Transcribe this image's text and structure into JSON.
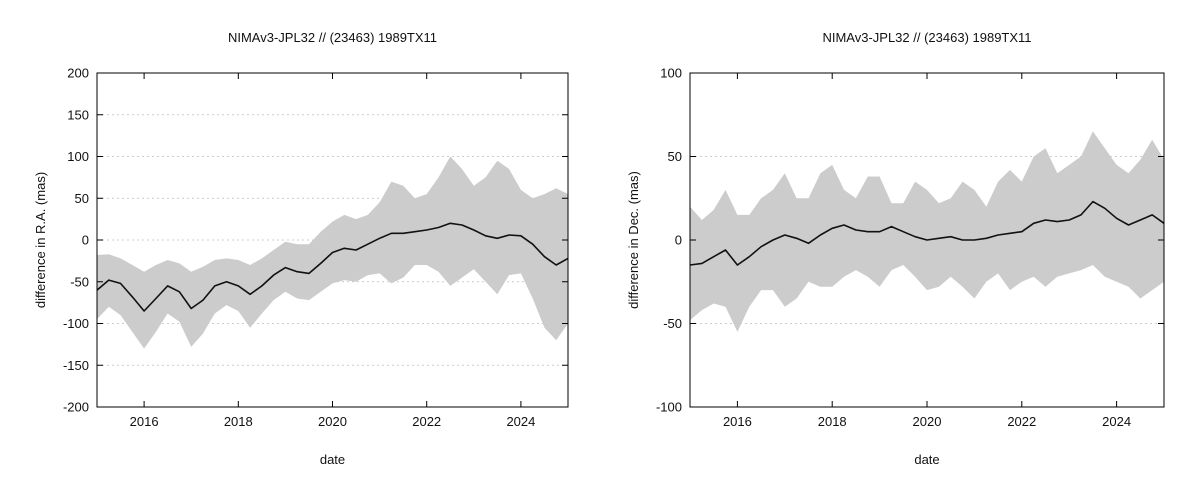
{
  "chart_data": [
    {
      "type": "line",
      "title": "NIMAv3-JPL32 // (23463) 1989TX11",
      "xlabel": "date",
      "ylabel": "difference in R.A. (mas)",
      "xlim": [
        "2015-01-01",
        "2025-01-01"
      ],
      "ylim": [
        -200,
        200
      ],
      "x_ticks": [
        "2016",
        "2018",
        "2020",
        "2022",
        "2024"
      ],
      "y_ticks": [
        -200,
        -150,
        -100,
        -50,
        0,
        50,
        100,
        150,
        200
      ],
      "grid": "horizontal dotted",
      "series": [
        {
          "type": "line",
          "x": [
            "2015-01",
            "2015-04",
            "2015-07",
            "2015-10",
            "2016-01",
            "2016-04",
            "2016-07",
            "2016-10",
            "2017-01",
            "2017-04",
            "2017-07",
            "2017-10",
            "2018-01",
            "2018-04",
            "2018-07",
            "2018-10",
            "2019-01",
            "2019-04",
            "2019-07",
            "2019-10",
            "2020-01",
            "2020-04",
            "2020-07",
            "2020-10",
            "2021-01",
            "2021-04",
            "2021-07",
            "2021-10",
            "2022-01",
            "2022-04",
            "2022-07",
            "2022-10",
            "2023-01",
            "2023-04",
            "2023-07",
            "2023-10",
            "2024-01",
            "2024-04",
            "2024-07",
            "2024-10",
            "2025-01"
          ],
          "y": [
            -60,
            -48,
            -52,
            -68,
            -85,
            -70,
            -55,
            -62,
            -82,
            -72,
            -55,
            -50,
            -55,
            -65,
            -55,
            -42,
            -33,
            -38,
            -40,
            -28,
            -15,
            -10,
            -12,
            -5,
            2,
            8,
            8,
            10,
            12,
            15,
            20,
            18,
            12,
            5,
            2,
            6,
            5,
            -5,
            -20,
            -30,
            -22
          ]
        },
        {
          "type": "area",
          "x": [
            "2015-01",
            "2015-04",
            "2015-07",
            "2015-10",
            "2016-01",
            "2016-04",
            "2016-07",
            "2016-10",
            "2017-01",
            "2017-04",
            "2017-07",
            "2017-10",
            "2018-01",
            "2018-04",
            "2018-07",
            "2018-10",
            "2019-01",
            "2019-04",
            "2019-07",
            "2019-10",
            "2020-01",
            "2020-04",
            "2020-07",
            "2020-10",
            "2021-01",
            "2021-04",
            "2021-07",
            "2021-10",
            "2022-01",
            "2022-04",
            "2022-07",
            "2022-10",
            "2023-01",
            "2023-04",
            "2023-07",
            "2023-10",
            "2024-01",
            "2024-04",
            "2024-07",
            "2024-10",
            "2025-01"
          ],
          "upper": [
            -18,
            -17,
            -22,
            -30,
            -38,
            -30,
            -24,
            -28,
            -38,
            -32,
            -24,
            -22,
            -24,
            -30,
            -22,
            -12,
            -2,
            -5,
            -5,
            10,
            22,
            30,
            25,
            30,
            45,
            70,
            65,
            50,
            55,
            75,
            100,
            85,
            65,
            75,
            95,
            85,
            60,
            50,
            55,
            62,
            55
          ],
          "lower": [
            -95,
            -80,
            -90,
            -110,
            -130,
            -110,
            -88,
            -98,
            -128,
            -112,
            -88,
            -78,
            -85,
            -105,
            -88,
            -72,
            -62,
            -70,
            -72,
            -62,
            -52,
            -48,
            -50,
            -42,
            -40,
            -52,
            -45,
            -30,
            -30,
            -38,
            -55,
            -45,
            -35,
            -50,
            -65,
            -42,
            -40,
            -70,
            -105,
            -120,
            -100
          ]
        }
      ]
    },
    {
      "type": "line",
      "title": "NIMAv3-JPL32 // (23463) 1989TX11",
      "xlabel": "date",
      "ylabel": "difference in Dec. (mas)",
      "xlim": [
        "2015-01-01",
        "2025-01-01"
      ],
      "ylim": [
        -100,
        100
      ],
      "x_ticks": [
        "2016",
        "2018",
        "2020",
        "2022",
        "2024"
      ],
      "y_ticks": [
        -100,
        -50,
        0,
        50,
        100
      ],
      "grid": "horizontal dotted",
      "series": [
        {
          "type": "line",
          "x": [
            "2015-01",
            "2015-04",
            "2015-07",
            "2015-10",
            "2016-01",
            "2016-04",
            "2016-07",
            "2016-10",
            "2017-01",
            "2017-04",
            "2017-07",
            "2017-10",
            "2018-01",
            "2018-04",
            "2018-07",
            "2018-10",
            "2019-01",
            "2019-04",
            "2019-07",
            "2019-10",
            "2020-01",
            "2020-04",
            "2020-07",
            "2020-10",
            "2021-01",
            "2021-04",
            "2021-07",
            "2021-10",
            "2022-01",
            "2022-04",
            "2022-07",
            "2022-10",
            "2023-01",
            "2023-04",
            "2023-07",
            "2023-10",
            "2024-01",
            "2024-04",
            "2024-07",
            "2024-10",
            "2025-01"
          ],
          "y": [
            -15,
            -14,
            -10,
            -6,
            -15,
            -10,
            -4,
            0,
            3,
            1,
            -2,
            3,
            7,
            9,
            6,
            5,
            5,
            8,
            5,
            2,
            0,
            1,
            2,
            0,
            0,
            1,
            3,
            4,
            5,
            10,
            12,
            11,
            12,
            15,
            23,
            19,
            13,
            9,
            12,
            15,
            10
          ]
        },
        {
          "type": "area",
          "x": [
            "2015-01",
            "2015-04",
            "2015-07",
            "2015-10",
            "2016-01",
            "2016-04",
            "2016-07",
            "2016-10",
            "2017-01",
            "2017-04",
            "2017-07",
            "2017-10",
            "2018-01",
            "2018-04",
            "2018-07",
            "2018-10",
            "2019-01",
            "2019-04",
            "2019-07",
            "2019-10",
            "2020-01",
            "2020-04",
            "2020-07",
            "2020-10",
            "2021-01",
            "2021-04",
            "2021-07",
            "2021-10",
            "2022-01",
            "2022-04",
            "2022-07",
            "2022-10",
            "2023-01",
            "2023-04",
            "2023-07",
            "2023-10",
            "2024-01",
            "2024-04",
            "2024-07",
            "2024-10",
            "2025-01"
          ],
          "upper": [
            20,
            12,
            18,
            30,
            15,
            15,
            25,
            30,
            40,
            25,
            25,
            40,
            45,
            30,
            25,
            38,
            38,
            22,
            22,
            35,
            30,
            22,
            25,
            35,
            30,
            20,
            35,
            42,
            35,
            50,
            55,
            40,
            45,
            50,
            65,
            55,
            45,
            40,
            48,
            60,
            48
          ],
          "lower": [
            -48,
            -42,
            -38,
            -40,
            -55,
            -40,
            -30,
            -30,
            -40,
            -35,
            -25,
            -28,
            -28,
            -22,
            -18,
            -22,
            -28,
            -18,
            -15,
            -22,
            -30,
            -28,
            -22,
            -28,
            -35,
            -25,
            -20,
            -30,
            -25,
            -22,
            -28,
            -22,
            -20,
            -18,
            -15,
            -22,
            -25,
            -28,
            -35,
            -30,
            -25
          ]
        }
      ]
    }
  ]
}
